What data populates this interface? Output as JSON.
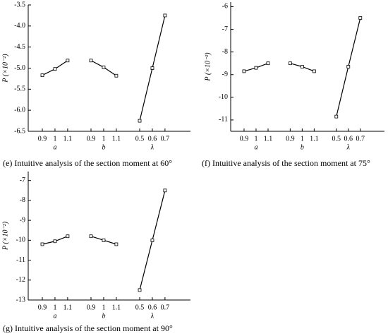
{
  "chart_data": [
    {
      "type": "line",
      "caption": "(e) Intuitive analysis of the section moment at  60°",
      "y_label": "P (×10⁻²)",
      "ylim": [
        -6.5,
        -3.5
      ],
      "yticks": [
        -3.5,
        {
          "value": -4,
          "label": "-4.0"
        },
        -4.5,
        {
          "value": -5,
          "label": "-5.0"
        },
        -5.5,
        {
          "value": -6,
          "label": "-6.0"
        },
        -6.5
      ],
      "groups": [
        {
          "name": "a",
          "categories": [
            "0.9",
            "1",
            "1.1"
          ],
          "values": [
            -5.17,
            -5.02,
            -4.82
          ]
        },
        {
          "name": "b",
          "categories": [
            "0.9",
            "1",
            "1.1"
          ],
          "values": [
            -4.82,
            -4.98,
            -5.18
          ]
        },
        {
          "name": "λ",
          "categories": [
            "0.5",
            "0.6",
            "0.7"
          ],
          "values": [
            -6.25,
            -5.0,
            -3.75
          ]
        }
      ]
    },
    {
      "type": "line",
      "caption": "(f) Intuitive analysis of the section moment at  75°",
      "y_label": "P (×10⁻²)",
      "ylim": [
        -11.5,
        -5.8
      ],
      "yticks": [
        -6,
        -7,
        -8,
        -9,
        -10,
        -11
      ],
      "groups": [
        {
          "name": "a",
          "categories": [
            "0.9",
            "1",
            "1.1"
          ],
          "values": [
            -8.85,
            -8.7,
            -8.5
          ]
        },
        {
          "name": "b",
          "categories": [
            "0.9",
            "1",
            "1.1"
          ],
          "values": [
            -8.5,
            -8.65,
            -8.85
          ]
        },
        {
          "name": "λ",
          "categories": [
            "0.5",
            "0.6",
            "0.7"
          ],
          "values": [
            -10.85,
            -8.65,
            -6.5
          ]
        }
      ]
    },
    {
      "type": "line",
      "caption": "(g) Intuitive analysis of the section moment at 90°",
      "y_label": "P (×10⁻²)",
      "ylim": [
        -13,
        -6.55
      ],
      "yticks": [
        -7,
        -8,
        -9,
        -10,
        -11,
        -12,
        -13
      ],
      "groups": [
        {
          "name": "a",
          "categories": [
            "0.9",
            "1",
            "1.1"
          ],
          "values": [
            -10.2,
            -10.05,
            -9.8
          ]
        },
        {
          "name": "b",
          "categories": [
            "0.9",
            "1",
            "1.1"
          ],
          "values": [
            -9.8,
            -10.0,
            -10.2
          ]
        },
        {
          "name": "λ",
          "categories": [
            "0.5",
            "0.6",
            "0.7"
          ],
          "values": [
            -12.5,
            -10.0,
            -7.5
          ]
        }
      ]
    }
  ]
}
